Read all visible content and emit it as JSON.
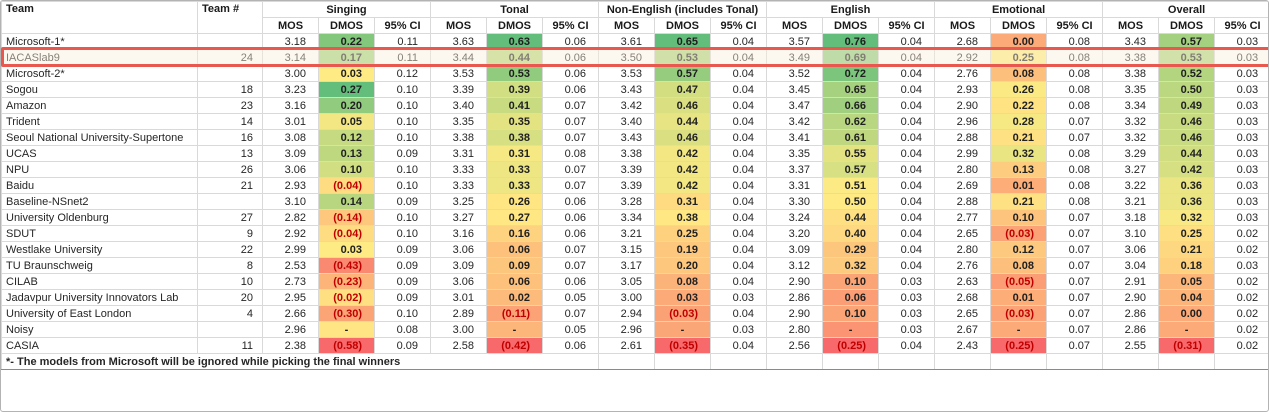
{
  "header": {
    "team": "Team",
    "team_num": "Team #",
    "metrics": [
      "MOS",
      "DMOS",
      "95% CI"
    ],
    "groups": [
      "Singing",
      "Tonal",
      "Non-English (includes Tonal)",
      "English",
      "Emotional",
      "Overall"
    ]
  },
  "footnote": "*- The models from Microsoft will be ignored while picking the final winners",
  "colors": {
    "scale_red": "#F8696B",
    "scale_yellow": "#FFEB84",
    "scale_green": "#63BE7B",
    "negative_text": "#C00000",
    "highlight_border": "#E8584E",
    "highlight_fill": "#FBF0DB",
    "gridline": "#D9D9D9"
  },
  "rows": [
    {
      "team": "Microsoft-1*",
      "num": "",
      "hl": false,
      "g": [
        {
          "mos": "3.18",
          "dmos": "0.22",
          "c": "#83C77D",
          "ci": "0.11"
        },
        {
          "mos": "3.63",
          "dmos": "0.63",
          "c": "#63BE7B",
          "ci": "0.06"
        },
        {
          "mos": "3.61",
          "dmos": "0.65",
          "c": "#63BE7B",
          "ci": "0.04"
        },
        {
          "mos": "3.57",
          "dmos": "0.76",
          "c": "#63BE7B",
          "ci": "0.04"
        },
        {
          "mos": "2.68",
          "dmos": "0.00",
          "c": "#FCAA78",
          "ci": "0.08"
        },
        {
          "mos": "3.43",
          "dmos": "0.57",
          "c": "#A3D17F",
          "ci": "0.03"
        }
      ]
    },
    {
      "team": "IACASlab9",
      "num": "24",
      "hl": true,
      "g": [
        {
          "mos": "3.14",
          "dmos": "0.17",
          "c": "#A4D17F",
          "ci": "0.11"
        },
        {
          "mos": "3.44",
          "dmos": "0.44",
          "c": "#BAD780",
          "ci": "0.06"
        },
        {
          "mos": "3.50",
          "dmos": "0.53",
          "c": "#AED47F",
          "ci": "0.04"
        },
        {
          "mos": "3.49",
          "dmos": "0.69",
          "c": "#8ECA7D",
          "ci": "0.04"
        },
        {
          "mos": "2.92",
          "dmos": "0.25",
          "c": "#FFEB84",
          "ci": "0.08"
        },
        {
          "mos": "3.38",
          "dmos": "0.53",
          "c": "#B1D580",
          "ci": "0.03"
        }
      ]
    },
    {
      "team": "Microsoft-2*",
      "num": "",
      "hl": false,
      "g": [
        {
          "mos": "3.00",
          "dmos": "0.03",
          "c": "#FFEB84",
          "ci": "0.12"
        },
        {
          "mos": "3.53",
          "dmos": "0.53",
          "c": "#91CB7E",
          "ci": "0.06"
        },
        {
          "mos": "3.53",
          "dmos": "0.57",
          "c": "#95CC7E",
          "ci": "0.04"
        },
        {
          "mos": "3.52",
          "dmos": "0.72",
          "c": "#7CC57C",
          "ci": "0.04"
        },
        {
          "mos": "2.76",
          "dmos": "0.08",
          "c": "#FDBF7C",
          "ci": "0.08"
        },
        {
          "mos": "3.38",
          "dmos": "0.52",
          "c": "#B4D580",
          "ci": "0.03"
        }
      ]
    },
    {
      "team": "Sogou",
      "num": "18",
      "hl": false,
      "g": [
        {
          "mos": "3.23",
          "dmos": "0.27",
          "c": "#63BE7B",
          "ci": "0.10"
        },
        {
          "mos": "3.39",
          "dmos": "0.39",
          "c": "#D1DE81",
          "ci": "0.06"
        },
        {
          "mos": "3.43",
          "dmos": "0.47",
          "c": "#D3DE81",
          "ci": "0.04"
        },
        {
          "mos": "3.45",
          "dmos": "0.65",
          "c": "#A6D17F",
          "ci": "0.04"
        },
        {
          "mos": "2.93",
          "dmos": "0.26",
          "c": "#FBEA84",
          "ci": "0.08"
        },
        {
          "mos": "3.35",
          "dmos": "0.50",
          "c": "#BBD780",
          "ci": "0.03"
        }
      ]
    },
    {
      "team": "Amazon",
      "num": "23",
      "hl": false,
      "g": [
        {
          "mos": "3.16",
          "dmos": "0.20",
          "c": "#91CB7E",
          "ci": "0.10"
        },
        {
          "mos": "3.40",
          "dmos": "0.41",
          "c": "#C8DB81",
          "ci": "0.07"
        },
        {
          "mos": "3.42",
          "dmos": "0.46",
          "c": "#DAE082",
          "ci": "0.04"
        },
        {
          "mos": "3.47",
          "dmos": "0.66",
          "c": "#A0D07F",
          "ci": "0.04"
        },
        {
          "mos": "2.90",
          "dmos": "0.22",
          "c": "#FFE383",
          "ci": "0.08"
        },
        {
          "mos": "3.34",
          "dmos": "0.49",
          "c": "#BFD880",
          "ci": "0.03"
        }
      ]
    },
    {
      "team": "Trident",
      "num": "14",
      "hl": false,
      "g": [
        {
          "mos": "3.01",
          "dmos": "0.05",
          "c": "#F2E783",
          "ci": "0.10"
        },
        {
          "mos": "3.35",
          "dmos": "0.35",
          "c": "#E4E382",
          "ci": "0.07"
        },
        {
          "mos": "3.40",
          "dmos": "0.44",
          "c": "#E6E483",
          "ci": "0.04"
        },
        {
          "mos": "3.42",
          "dmos": "0.62",
          "c": "#B9D780",
          "ci": "0.04"
        },
        {
          "mos": "2.96",
          "dmos": "0.28",
          "c": "#F6E883",
          "ci": "0.07"
        },
        {
          "mos": "3.32",
          "dmos": "0.46",
          "c": "#C9DB81",
          "ci": "0.03"
        }
      ]
    },
    {
      "team": "Seoul National University-Supertone",
      "num": "16",
      "hl": false,
      "g": [
        {
          "mos": "3.08",
          "dmos": "0.12",
          "c": "#C5DA81",
          "ci": "0.10"
        },
        {
          "mos": "3.38",
          "dmos": "0.38",
          "c": "#D6DF82",
          "ci": "0.07"
        },
        {
          "mos": "3.43",
          "dmos": "0.46",
          "c": "#DAE082",
          "ci": "0.04"
        },
        {
          "mos": "3.41",
          "dmos": "0.61",
          "c": "#BFD880",
          "ci": "0.04"
        },
        {
          "mos": "2.88",
          "dmos": "0.21",
          "c": "#FEE182",
          "ci": "0.07"
        },
        {
          "mos": "3.32",
          "dmos": "0.46",
          "c": "#C9DB81",
          "ci": "0.03"
        }
      ]
    },
    {
      "team": "UCAS",
      "num": "13",
      "hl": false,
      "g": [
        {
          "mos": "3.09",
          "dmos": "0.13",
          "c": "#BED880",
          "ci": "0.09"
        },
        {
          "mos": "3.31",
          "dmos": "0.31",
          "c": "#F6E883",
          "ci": "0.08"
        },
        {
          "mos": "3.38",
          "dmos": "0.42",
          "c": "#F3E783",
          "ci": "0.04"
        },
        {
          "mos": "3.35",
          "dmos": "0.55",
          "c": "#E4E382",
          "ci": "0.04"
        },
        {
          "mos": "2.99",
          "dmos": "0.32",
          "c": "#EAE583",
          "ci": "0.08"
        },
        {
          "mos": "3.29",
          "dmos": "0.44",
          "c": "#D0DD81",
          "ci": "0.03"
        }
      ]
    },
    {
      "team": "NPU",
      "num": "26",
      "hl": false,
      "g": [
        {
          "mos": "3.06",
          "dmos": "0.10",
          "c": "#D1DE81",
          "ci": "0.10"
        },
        {
          "mos": "3.33",
          "dmos": "0.33",
          "c": "#EDE683",
          "ci": "0.07"
        },
        {
          "mos": "3.39",
          "dmos": "0.42",
          "c": "#F3E783",
          "ci": "0.04"
        },
        {
          "mos": "3.37",
          "dmos": "0.57",
          "c": "#D7E082",
          "ci": "0.04"
        },
        {
          "mos": "2.80",
          "dmos": "0.13",
          "c": "#FDCC7E",
          "ci": "0.08"
        },
        {
          "mos": "3.27",
          "dmos": "0.42",
          "c": "#D6DF82",
          "ci": "0.03"
        }
      ]
    },
    {
      "team": "Baidu",
      "num": "21",
      "hl": false,
      "g": [
        {
          "mos": "2.93",
          "dmos": "(0.04)",
          "c": "#FEDC81",
          "ci": "0.10"
        },
        {
          "mos": "3.33",
          "dmos": "0.33",
          "c": "#EDE683",
          "ci": "0.07"
        },
        {
          "mos": "3.39",
          "dmos": "0.42",
          "c": "#F3E783",
          "ci": "0.04"
        },
        {
          "mos": "3.31",
          "dmos": "0.51",
          "c": "#FCEA84",
          "ci": "0.04"
        },
        {
          "mos": "2.69",
          "dmos": "0.01",
          "c": "#FCAD78",
          "ci": "0.08"
        },
        {
          "mos": "3.22",
          "dmos": "0.36",
          "c": "#EBE583",
          "ci": "0.03"
        }
      ]
    },
    {
      "team": "Baseline-NSnet2",
      "num": "",
      "hl": false,
      "g": [
        {
          "mos": "3.10",
          "dmos": "0.14",
          "c": "#B8D680",
          "ci": "0.09"
        },
        {
          "mos": "3.25",
          "dmos": "0.26",
          "c": "#FFE683",
          "ci": "0.06"
        },
        {
          "mos": "3.28",
          "dmos": "0.31",
          "c": "#FEDB81",
          "ci": "0.04"
        },
        {
          "mos": "3.30",
          "dmos": "0.50",
          "c": "#FFEA84",
          "ci": "0.04"
        },
        {
          "mos": "2.88",
          "dmos": "0.21",
          "c": "#FEE182",
          "ci": "0.08"
        },
        {
          "mos": "3.21",
          "dmos": "0.36",
          "c": "#EBE583",
          "ci": "0.03"
        }
      ]
    },
    {
      "team": "University Oldenburg",
      "num": "27",
      "hl": false,
      "g": [
        {
          "mos": "2.82",
          "dmos": "(0.14)",
          "c": "#FDC77D",
          "ci": "0.10"
        },
        {
          "mos": "3.27",
          "dmos": "0.27",
          "c": "#FFE783",
          "ci": "0.06"
        },
        {
          "mos": "3.34",
          "dmos": "0.38",
          "c": "#FFE883",
          "ci": "0.04"
        },
        {
          "mos": "3.24",
          "dmos": "0.44",
          "c": "#FEE082",
          "ci": "0.04"
        },
        {
          "mos": "2.77",
          "dmos": "0.10",
          "c": "#FDC47D",
          "ci": "0.07"
        },
        {
          "mos": "3.18",
          "dmos": "0.32",
          "c": "#F8E984",
          "ci": "0.03"
        }
      ]
    },
    {
      "team": "SDUT",
      "num": "9",
      "hl": false,
      "g": [
        {
          "mos": "2.92",
          "dmos": "(0.04)",
          "c": "#FEDC81",
          "ci": "0.10"
        },
        {
          "mos": "3.16",
          "dmos": "0.16",
          "c": "#FED37F",
          "ci": "0.06"
        },
        {
          "mos": "3.21",
          "dmos": "0.25",
          "c": "#FED17F",
          "ci": "0.04"
        },
        {
          "mos": "3.20",
          "dmos": "0.40",
          "c": "#FED981",
          "ci": "0.04"
        },
        {
          "mos": "2.65",
          "dmos": "(0.03)",
          "c": "#FBA276",
          "ci": "0.07"
        },
        {
          "mos": "3.10",
          "dmos": "0.25",
          "c": "#FEE082",
          "ci": "0.02"
        }
      ]
    },
    {
      "team": "Westlake University",
      "num": "22",
      "hl": false,
      "g": [
        {
          "mos": "2.99",
          "dmos": "0.03",
          "c": "#FFEB84",
          "ci": "0.09"
        },
        {
          "mos": "3.06",
          "dmos": "0.06",
          "c": "#FDC17C",
          "ci": "0.07"
        },
        {
          "mos": "3.15",
          "dmos": "0.19",
          "c": "#FDC77D",
          "ci": "0.04"
        },
        {
          "mos": "3.09",
          "dmos": "0.29",
          "c": "#FDC67D",
          "ci": "0.04"
        },
        {
          "mos": "2.80",
          "dmos": "0.12",
          "c": "#FDC97E",
          "ci": "0.07"
        },
        {
          "mos": "3.06",
          "dmos": "0.21",
          "c": "#FED880",
          "ci": "0.02"
        }
      ]
    },
    {
      "team": "TU Braunschweig",
      "num": "8",
      "hl": false,
      "g": [
        {
          "mos": "2.53",
          "dmos": "(0.43)",
          "c": "#FA8971",
          "ci": "0.09"
        },
        {
          "mos": "3.09",
          "dmos": "0.09",
          "c": "#FDC67D",
          "ci": "0.07"
        },
        {
          "mos": "3.17",
          "dmos": "0.20",
          "c": "#FDC87D",
          "ci": "0.04"
        },
        {
          "mos": "3.12",
          "dmos": "0.32",
          "c": "#FDCB7E",
          "ci": "0.04"
        },
        {
          "mos": "2.76",
          "dmos": "0.08",
          "c": "#FDBF7C",
          "ci": "0.07"
        },
        {
          "mos": "3.04",
          "dmos": "0.18",
          "c": "#FED17F",
          "ci": "0.03"
        }
      ]
    },
    {
      "team": "CILAB",
      "num": "10",
      "hl": false,
      "g": [
        {
          "mos": "2.73",
          "dmos": "(0.23)",
          "c": "#FCB479",
          "ci": "0.09"
        },
        {
          "mos": "3.06",
          "dmos": "0.06",
          "c": "#FDC17C",
          "ci": "0.06"
        },
        {
          "mos": "3.05",
          "dmos": "0.08",
          "c": "#FCB379",
          "ci": "0.04"
        },
        {
          "mos": "2.90",
          "dmos": "0.10",
          "c": "#FBA577",
          "ci": "0.03"
        },
        {
          "mos": "2.63",
          "dmos": "(0.05)",
          "c": "#FB9D75",
          "ci": "0.07"
        },
        {
          "mos": "2.91",
          "dmos": "0.05",
          "c": "#FCB67A",
          "ci": "0.02"
        }
      ]
    },
    {
      "team": "Jadavpur University Innovators Lab",
      "num": "20",
      "hl": false,
      "g": [
        {
          "mos": "2.95",
          "dmos": "(0.02)",
          "c": "#FEE082",
          "ci": "0.09"
        },
        {
          "mos": "3.01",
          "dmos": "0.02",
          "c": "#FCBA7B",
          "ci": "0.05"
        },
        {
          "mos": "3.00",
          "dmos": "0.03",
          "c": "#FCAB78",
          "ci": "0.03"
        },
        {
          "mos": "2.86",
          "dmos": "0.06",
          "c": "#FB9E75",
          "ci": "0.03"
        },
        {
          "mos": "2.68",
          "dmos": "0.01",
          "c": "#FCAD78",
          "ci": "0.07"
        },
        {
          "mos": "2.90",
          "dmos": "0.04",
          "c": "#FCB479",
          "ci": "0.02"
        }
      ]
    },
    {
      "team": "University of East London",
      "num": "4",
      "hl": false,
      "g": [
        {
          "mos": "2.66",
          "dmos": "(0.30)",
          "c": "#FBA576",
          "ci": "0.10"
        },
        {
          "mos": "2.89",
          "dmos": "(0.11)",
          "c": "#FBA276",
          "ci": "0.07"
        },
        {
          "mos": "2.94",
          "dmos": "(0.03)",
          "c": "#FBA176",
          "ci": "0.04"
        },
        {
          "mos": "2.90",
          "dmos": "0.10",
          "c": "#FBA577",
          "ci": "0.03"
        },
        {
          "mos": "2.65",
          "dmos": "(0.03)",
          "c": "#FBA276",
          "ci": "0.07"
        },
        {
          "mos": "2.86",
          "dmos": "0.00",
          "c": "#FCAB78",
          "ci": "0.02"
        }
      ]
    },
    {
      "team": "Noisy",
      "num": "",
      "hl": false,
      "g": [
        {
          "mos": "2.96",
          "dmos": "-",
          "c": "#FFE583",
          "ci": "0.08"
        },
        {
          "mos": "3.00",
          "dmos": "-",
          "c": "#FCB67A",
          "ci": "0.05"
        },
        {
          "mos": "2.96",
          "dmos": "-",
          "c": "#FBA677",
          "ci": "0.03"
        },
        {
          "mos": "2.80",
          "dmos": "-",
          "c": "#FA9473",
          "ci": "0.03"
        },
        {
          "mos": "2.67",
          "dmos": "-",
          "c": "#FCAA78",
          "ci": "0.07"
        },
        {
          "mos": "2.86",
          "dmos": "-",
          "c": "#FCAB78",
          "ci": "0.02"
        }
      ]
    },
    {
      "team": "CASIA",
      "num": "11",
      "hl": false,
      "g": [
        {
          "mos": "2.38",
          "dmos": "(0.58)",
          "c": "#F8696B",
          "ci": "0.09"
        },
        {
          "mos": "2.58",
          "dmos": "(0.42)",
          "c": "#F8696B",
          "ci": "0.06"
        },
        {
          "mos": "2.61",
          "dmos": "(0.35)",
          "c": "#F8696B",
          "ci": "0.04"
        },
        {
          "mos": "2.56",
          "dmos": "(0.25)",
          "c": "#F8696B",
          "ci": "0.04"
        },
        {
          "mos": "2.43",
          "dmos": "(0.25)",
          "c": "#F8696B",
          "ci": "0.07"
        },
        {
          "mos": "2.55",
          "dmos": "(0.31)",
          "c": "#F8696B",
          "ci": "0.02"
        }
      ]
    }
  ]
}
